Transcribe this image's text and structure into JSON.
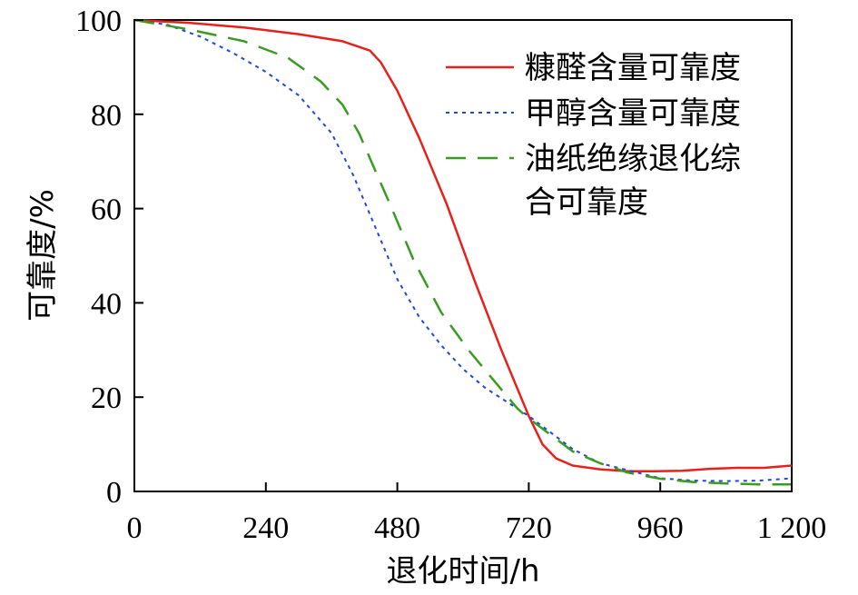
{
  "chart_data": {
    "type": "line",
    "xlabel": "退化时间/h",
    "ylabel": "可靠度/%",
    "xlim": [
      0,
      1200
    ],
    "ylim": [
      0,
      100
    ],
    "xticks": [
      0,
      240,
      480,
      720,
      960,
      1200
    ],
    "xtick_labels": [
      "0",
      "240",
      "480",
      "720",
      "960",
      "1 200"
    ],
    "yticks": [
      0,
      20,
      40,
      60,
      80,
      100
    ],
    "ytick_labels": [
      "0",
      "20",
      "40",
      "60",
      "80",
      "100"
    ],
    "grid": false,
    "legend_position": "top-right",
    "series": [
      {
        "name": "糠醛含量可靠度",
        "color": "#e8201c",
        "style": "solid",
        "x": [
          0,
          100,
          200,
          300,
          380,
          430,
          450,
          480,
          520,
          570,
          620,
          670,
          720,
          745,
          770,
          800,
          850,
          900,
          950,
          1000,
          1050,
          1100,
          1150,
          1200
        ],
        "y": [
          100,
          99.4,
          98.4,
          97,
          95.5,
          93.5,
          91,
          85,
          75,
          61,
          45,
          30,
          16,
          10,
          7,
          5.5,
          4.7,
          4.3,
          4.3,
          4.4,
          4.8,
          5,
          5,
          5.5
        ]
      },
      {
        "name": "甲醇含量可靠度",
        "color": "#1e46e0",
        "style": "dotted",
        "x": [
          0,
          60,
          120,
          180,
          240,
          300,
          360,
          400,
          440,
          480,
          520,
          560,
          600,
          640,
          680,
          720,
          760,
          800,
          850,
          900,
          960,
          1020,
          1080,
          1140,
          1200
        ],
        "y": [
          100,
          99,
          96.5,
          93,
          89,
          84,
          76,
          67,
          56,
          45,
          37,
          31,
          26,
          22,
          19,
          16,
          12.5,
          9,
          6,
          4.5,
          2.8,
          2.3,
          2.2,
          2.3,
          2.8
        ]
      },
      {
        "name": "油纸绝缘退化综合可靠度",
        "name_lines": [
          "油纸绝缘退化综",
          "合可靠度"
        ],
        "color": "#3a9b23",
        "style": "dashed",
        "x": [
          0,
          100,
          200,
          280,
          340,
          380,
          410,
          440,
          470,
          510,
          560,
          610,
          660,
          700,
          720,
          760,
          800,
          850,
          900,
          960,
          1020,
          1080,
          1140,
          1200
        ],
        "y": [
          100,
          98,
          95.5,
          92,
          87,
          82,
          76,
          68,
          60,
          49,
          38,
          30,
          23,
          17.5,
          15.5,
          12,
          8.5,
          6,
          4,
          2.7,
          2,
          1.7,
          1.5,
          1.5
        ]
      }
    ]
  }
}
